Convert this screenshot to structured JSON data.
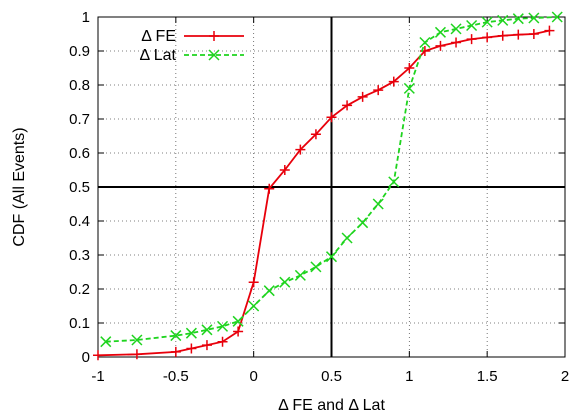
{
  "chart_data": {
    "type": "line",
    "xlabel": "Δ FE and Δ Lat",
    "ylabel": "CDF (All Events)",
    "xlim": [
      -1,
      2
    ],
    "ylim": [
      0,
      1
    ],
    "x_ticks": [
      -1,
      -0.5,
      0,
      0.5,
      1,
      1.5,
      2
    ],
    "x_tick_labels": [
      "-1",
      "-0.5",
      "0",
      "0.5",
      "1",
      "1.5",
      "2"
    ],
    "y_ticks": [
      0,
      0.1,
      0.2,
      0.3,
      0.4,
      0.5,
      0.6,
      0.7,
      0.8,
      0.9,
      1
    ],
    "y_tick_labels": [
      "0",
      "0.1",
      "0.2",
      "0.3",
      "0.4",
      "0.5",
      "0.6",
      "0.7",
      "0.8",
      "0.9",
      "1"
    ],
    "grid": true,
    "legend_position": "top-left",
    "reference_lines": {
      "x": 0.5,
      "y": 0.5
    },
    "series": [
      {
        "name": "Δ FE",
        "color": "#e8000b",
        "marker": "plus",
        "line_style": "solid",
        "points": [
          [
            -1.0,
            0.005
          ],
          [
            -0.75,
            0.008
          ],
          [
            -0.5,
            0.015
          ],
          [
            -0.4,
            0.025
          ],
          [
            -0.3,
            0.035
          ],
          [
            -0.2,
            0.045
          ],
          [
            -0.1,
            0.075
          ],
          [
            0.0,
            0.22
          ],
          [
            0.1,
            0.495
          ],
          [
            0.2,
            0.55
          ],
          [
            0.3,
            0.61
          ],
          [
            0.4,
            0.655
          ],
          [
            0.5,
            0.705
          ],
          [
            0.6,
            0.74
          ],
          [
            0.7,
            0.765
          ],
          [
            0.8,
            0.785
          ],
          [
            0.9,
            0.81
          ],
          [
            1.0,
            0.85
          ],
          [
            1.1,
            0.9
          ],
          [
            1.2,
            0.915
          ],
          [
            1.3,
            0.925
          ],
          [
            1.4,
            0.935
          ],
          [
            1.5,
            0.94
          ],
          [
            1.6,
            0.945
          ],
          [
            1.7,
            0.948
          ],
          [
            1.8,
            0.95
          ],
          [
            1.9,
            0.96
          ]
        ]
      },
      {
        "name": "Δ Lat",
        "color": "#1ed41e",
        "marker": "x",
        "line_style": "dashed",
        "points": [
          [
            -0.95,
            0.045
          ],
          [
            -0.75,
            0.05
          ],
          [
            -0.5,
            0.063
          ],
          [
            -0.4,
            0.07
          ],
          [
            -0.3,
            0.08
          ],
          [
            -0.2,
            0.09
          ],
          [
            -0.1,
            0.105
          ],
          [
            0.0,
            0.15
          ],
          [
            0.1,
            0.195
          ],
          [
            0.2,
            0.22
          ],
          [
            0.3,
            0.24
          ],
          [
            0.4,
            0.265
          ],
          [
            0.5,
            0.295
          ],
          [
            0.6,
            0.35
          ],
          [
            0.7,
            0.395
          ],
          [
            0.8,
            0.45
          ],
          [
            0.9,
            0.515
          ],
          [
            1.0,
            0.79
          ],
          [
            1.1,
            0.925
          ],
          [
            1.2,
            0.955
          ],
          [
            1.3,
            0.965
          ],
          [
            1.4,
            0.975
          ],
          [
            1.5,
            0.985
          ],
          [
            1.6,
            0.99
          ],
          [
            1.7,
            0.995
          ],
          [
            1.8,
            0.997
          ],
          [
            1.95,
            1.0
          ]
        ]
      }
    ]
  }
}
